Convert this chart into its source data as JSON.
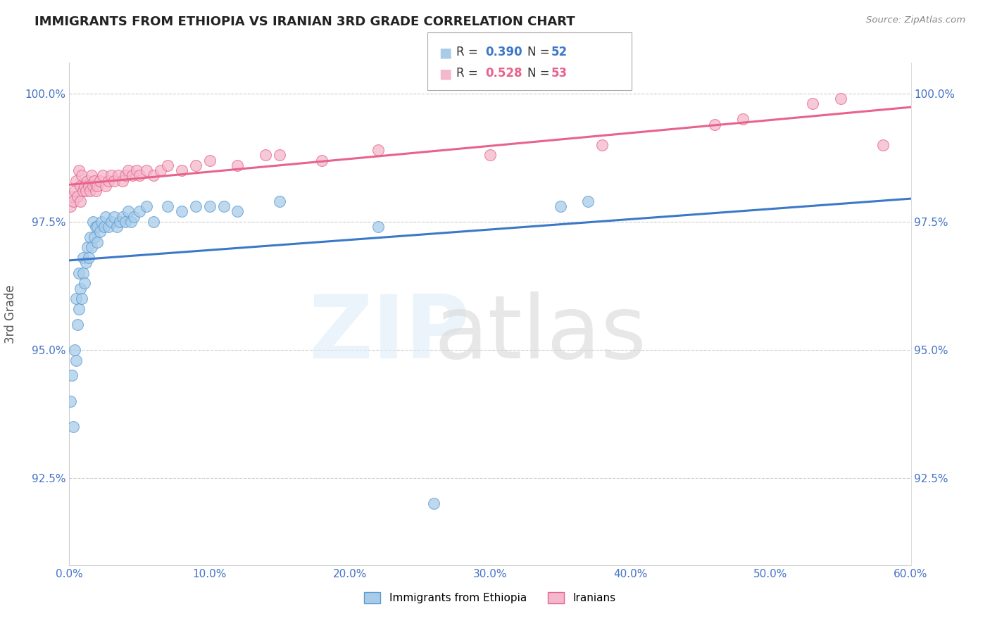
{
  "title": "IMMIGRANTS FROM ETHIOPIA VS IRANIAN 3RD GRADE CORRELATION CHART",
  "source": "Source: ZipAtlas.com",
  "ylabel": "3rd Grade",
  "xlim": [
    0.0,
    0.6
  ],
  "ylim": [
    0.908,
    1.006
  ],
  "ytick_labels": [
    "92.5%",
    "95.0%",
    "97.5%",
    "100.0%"
  ],
  "ytick_values": [
    0.925,
    0.95,
    0.975,
    1.0
  ],
  "xtick_labels": [
    "0.0%",
    "10.0%",
    "20.0%",
    "30.0%",
    "40.0%",
    "50.0%",
    "60.0%"
  ],
  "xtick_values": [
    0.0,
    0.1,
    0.2,
    0.3,
    0.4,
    0.5,
    0.6
  ],
  "legend_labels": [
    "Immigrants from Ethiopia",
    "Iranians"
  ],
  "ethiopia_color": "#a8cce8",
  "ethiopia_edge_color": "#5b9bd5",
  "iranian_color": "#f4b8cc",
  "iranian_edge_color": "#e8638c",
  "ethiopia_line_color": "#3c78c8",
  "iranian_line_color": "#e8638c",
  "ethiopia_R": 0.39,
  "ethiopia_N": 52,
  "iranian_R": 0.528,
  "iranian_N": 53,
  "ethiopia_x": [
    0.001,
    0.002,
    0.003,
    0.004,
    0.005,
    0.005,
    0.006,
    0.007,
    0.007,
    0.008,
    0.009,
    0.01,
    0.01,
    0.011,
    0.012,
    0.013,
    0.014,
    0.015,
    0.016,
    0.017,
    0.018,
    0.019,
    0.02,
    0.02,
    0.022,
    0.023,
    0.025,
    0.026,
    0.028,
    0.03,
    0.032,
    0.034,
    0.036,
    0.038,
    0.04,
    0.042,
    0.044,
    0.046,
    0.05,
    0.055,
    0.06,
    0.07,
    0.08,
    0.09,
    0.1,
    0.11,
    0.12,
    0.15,
    0.22,
    0.26,
    0.35,
    0.37
  ],
  "ethiopia_y": [
    0.94,
    0.945,
    0.935,
    0.95,
    0.948,
    0.96,
    0.955,
    0.965,
    0.958,
    0.962,
    0.96,
    0.965,
    0.968,
    0.963,
    0.967,
    0.97,
    0.968,
    0.972,
    0.97,
    0.975,
    0.972,
    0.974,
    0.971,
    0.974,
    0.973,
    0.975,
    0.974,
    0.976,
    0.974,
    0.975,
    0.976,
    0.974,
    0.975,
    0.976,
    0.975,
    0.977,
    0.975,
    0.976,
    0.977,
    0.978,
    0.975,
    0.978,
    0.977,
    0.978,
    0.978,
    0.978,
    0.977,
    0.979,
    0.974,
    0.92,
    0.978,
    0.979
  ],
  "iranian_x": [
    0.001,
    0.002,
    0.003,
    0.004,
    0.005,
    0.006,
    0.007,
    0.008,
    0.008,
    0.009,
    0.01,
    0.011,
    0.012,
    0.013,
    0.014,
    0.015,
    0.016,
    0.017,
    0.018,
    0.019,
    0.02,
    0.022,
    0.024,
    0.026,
    0.028,
    0.03,
    0.032,
    0.035,
    0.038,
    0.04,
    0.042,
    0.045,
    0.048,
    0.05,
    0.055,
    0.06,
    0.065,
    0.07,
    0.08,
    0.09,
    0.1,
    0.12,
    0.14,
    0.15,
    0.18,
    0.22,
    0.3,
    0.38,
    0.46,
    0.48,
    0.53,
    0.55,
    0.58
  ],
  "iranian_y": [
    0.978,
    0.98,
    0.979,
    0.981,
    0.983,
    0.98,
    0.985,
    0.982,
    0.979,
    0.984,
    0.981,
    0.982,
    0.981,
    0.983,
    0.982,
    0.981,
    0.984,
    0.982,
    0.983,
    0.981,
    0.982,
    0.983,
    0.984,
    0.982,
    0.983,
    0.984,
    0.983,
    0.984,
    0.983,
    0.984,
    0.985,
    0.984,
    0.985,
    0.984,
    0.985,
    0.984,
    0.985,
    0.986,
    0.985,
    0.986,
    0.987,
    0.986,
    0.988,
    0.988,
    0.987,
    0.989,
    0.988,
    0.99,
    0.994,
    0.995,
    0.998,
    0.999,
    0.99
  ]
}
